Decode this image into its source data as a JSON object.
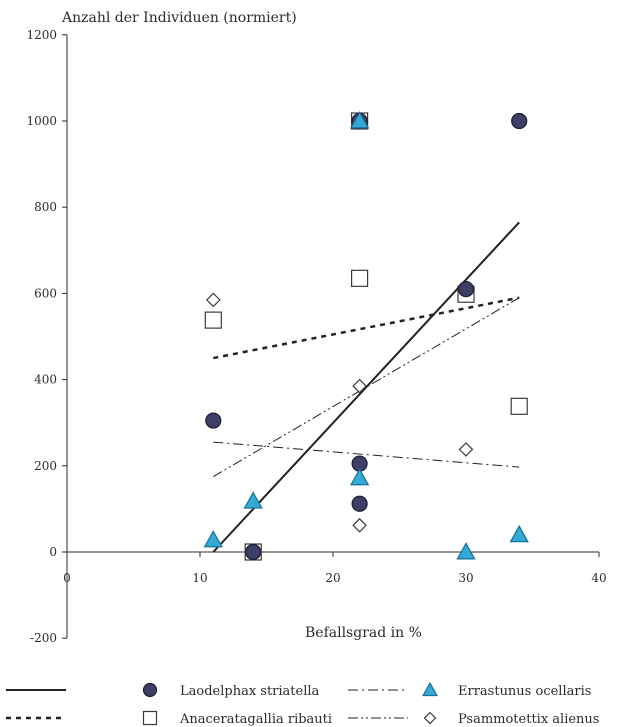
{
  "chart_data": {
    "type": "scatter",
    "title": "",
    "ylabel": "Anzahl der Individuen (normiert)",
    "xlabel": "Befallsgrad in %",
    "xlim": [
      0,
      40
    ],
    "ylim": [
      -200,
      1200
    ],
    "x_ticks": [
      0,
      10,
      20,
      30,
      40
    ],
    "y_ticks": [
      -200,
      0,
      200,
      400,
      600,
      800,
      1000,
      1200
    ],
    "grid": false,
    "legend_position": "bottom",
    "series": [
      {
        "name": "Laodelphax striatella",
        "marker": "circle",
        "marker_color": "#3d3f66",
        "points": [
          [
            11,
            305
          ],
          [
            14,
            0
          ],
          [
            22,
            1000
          ],
          [
            22,
            205
          ],
          [
            22,
            112
          ],
          [
            30,
            610
          ],
          [
            34,
            1000
          ]
        ],
        "trend": {
          "style": "solid",
          "x": [
            11,
            34
          ],
          "y": [
            0,
            765
          ]
        }
      },
      {
        "name": "Anaceratagallia ribauti",
        "marker": "square",
        "marker_color": "#ffffff",
        "points": [
          [
            11,
            538
          ],
          [
            14,
            0
          ],
          [
            22,
            1000
          ],
          [
            22,
            635
          ],
          [
            30,
            598
          ],
          [
            34,
            338
          ]
        ],
        "trend": {
          "style": "dashed",
          "x": [
            11,
            34
          ],
          "y": [
            450,
            590
          ]
        }
      },
      {
        "name": "Errastunus ocellaris",
        "marker": "triangle",
        "marker_color": "#33a9d6",
        "points": [
          [
            11,
            28
          ],
          [
            14,
            118
          ],
          [
            22,
            1000
          ],
          [
            22,
            172
          ],
          [
            30,
            0
          ],
          [
            34,
            40
          ]
        ],
        "trend": {
          "style": "dashdot",
          "x": [
            11,
            34
          ],
          "y": [
            255,
            197
          ]
        }
      },
      {
        "name": "Psammotettix alienus",
        "marker": "diamond",
        "marker_color": "#ffffff",
        "points": [
          [
            11,
            585
          ],
          [
            22,
            385
          ],
          [
            22,
            62
          ],
          [
            30,
            238
          ]
        ],
        "trend": {
          "style": "dashdotdot",
          "x": [
            11,
            34
          ],
          "y": [
            175,
            590
          ]
        }
      }
    ]
  }
}
